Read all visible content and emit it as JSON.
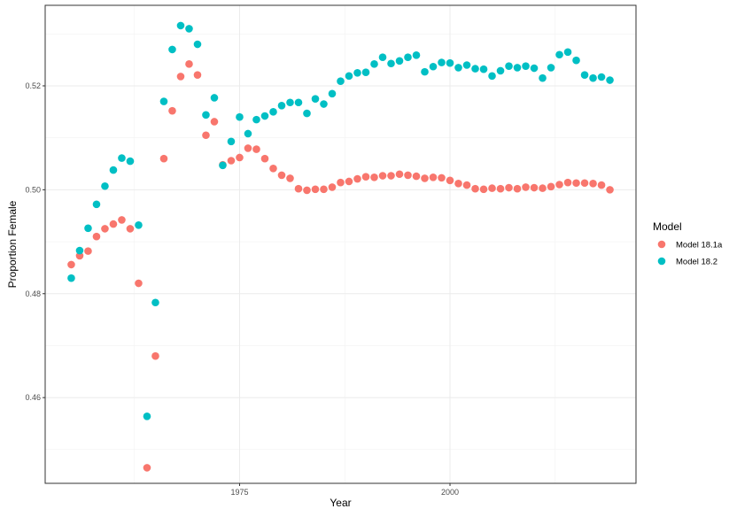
{
  "chart_data": {
    "type": "scatter",
    "xlabel": "Year",
    "ylabel": "Proportion Female",
    "xlim": [
      1951.9,
      2022.1
    ],
    "ylim": [
      0.4435,
      0.5355
    ],
    "x_ticks": [
      1975,
      2000
    ],
    "y_ticks": [
      0.46,
      0.48,
      0.5,
      0.52
    ],
    "y_tick_labels": [
      "0.46",
      "0.48",
      "0.50",
      "0.52"
    ],
    "x_tick_labels": [
      "1975",
      "2000"
    ],
    "grid": true,
    "legend": {
      "title": "Model",
      "placement": "right"
    },
    "x": [
      1955,
      1956,
      1957,
      1958,
      1959,
      1960,
      1961,
      1962,
      1963,
      1964,
      1965,
      1966,
      1967,
      1968,
      1969,
      1970,
      1971,
      1972,
      1973,
      1974,
      1975,
      1976,
      1977,
      1978,
      1979,
      1980,
      1981,
      1982,
      1983,
      1984,
      1985,
      1986,
      1987,
      1988,
      1989,
      1990,
      1991,
      1992,
      1993,
      1994,
      1995,
      1996,
      1997,
      1998,
      1999,
      2000,
      2001,
      2002,
      2003,
      2004,
      2005,
      2006,
      2007,
      2008,
      2009,
      2010,
      2011,
      2012,
      2013,
      2014,
      2015,
      2016,
      2017,
      2018,
      2019
    ],
    "series": [
      {
        "name": "Model 18.1a",
        "color": "#F8766D",
        "values": [
          0.4856,
          0.4873,
          0.4882,
          0.491,
          0.4925,
          0.4934,
          0.4942,
          0.4925,
          0.482,
          0.4465,
          0.468,
          0.506,
          0.5152,
          0.5218,
          0.5242,
          0.5221,
          0.5105,
          0.5131,
          0.5048,
          0.5056,
          0.5062,
          0.508,
          0.5078,
          0.506,
          0.5041,
          0.5028,
          0.5022,
          0.5002,
          0.4999,
          0.5001,
          0.5001,
          0.5005,
          0.5014,
          0.5016,
          0.5021,
          0.5025,
          0.5024,
          0.5027,
          0.5027,
          0.503,
          0.5028,
          0.5026,
          0.5022,
          0.5024,
          0.5023,
          0.5018,
          0.5012,
          0.5009,
          0.5002,
          0.5001,
          0.5003,
          0.5002,
          0.5004,
          0.5002,
          0.5005,
          0.5004,
          0.5003,
          0.5006,
          0.501,
          0.5014,
          0.5013,
          0.5013,
          0.5012,
          0.5009,
          0.5
        ]
      },
      {
        "name": "Model 18.2",
        "color": "#00BFC4",
        "values": [
          0.483,
          0.4883,
          0.4926,
          0.4972,
          0.5007,
          0.5038,
          0.5061,
          0.5055,
          0.4932,
          0.4564,
          0.4783,
          0.517,
          0.527,
          0.5316,
          0.531,
          0.528,
          0.5144,
          0.5177,
          0.5047,
          0.5093,
          0.514,
          0.5108,
          0.5135,
          0.5142,
          0.515,
          0.5162,
          0.5168,
          0.5168,
          0.5147,
          0.5175,
          0.5165,
          0.5185,
          0.5209,
          0.5219,
          0.5225,
          0.5226,
          0.5242,
          0.5255,
          0.5243,
          0.5248,
          0.5255,
          0.5259,
          0.5227,
          0.5237,
          0.5245,
          0.5244,
          0.5235,
          0.524,
          0.5233,
          0.5232,
          0.5219,
          0.5229,
          0.5238,
          0.5235,
          0.5238,
          0.5234,
          0.5215,
          0.5235,
          0.526,
          0.5265,
          0.5249,
          0.5221,
          0.5215,
          0.5217,
          0.5211
        ]
      }
    ]
  }
}
